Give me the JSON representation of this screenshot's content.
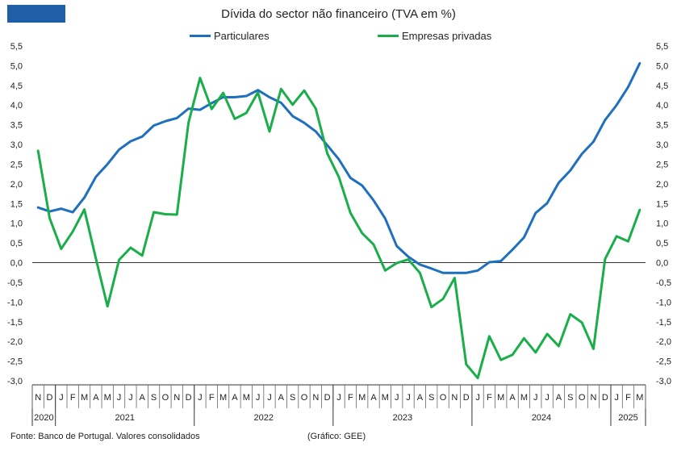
{
  "header": {
    "title": "Dívida do sector não financeiro (TVA em %)",
    "logo_color": "#1f5fa8"
  },
  "legend": {
    "series1": "Particulares",
    "series2": "Empresas privadas"
  },
  "footer": {
    "source": "Fonte: Banco de Portugal. Valores consolidados",
    "credit": "(Gráfico: GEE)"
  },
  "chart_data": {
    "type": "line",
    "title": "Dívida do sector não financeiro (TVA em %)",
    "ylim": [
      -3.0,
      5.5
    ],
    "yticks": [
      -3.0,
      -2.5,
      -2.0,
      -1.5,
      -1.0,
      -0.5,
      0.0,
      0.5,
      1.0,
      1.5,
      2.0,
      2.5,
      3.0,
      3.5,
      4.0,
      4.5,
      5.0,
      5.5
    ],
    "ytick_labels": [
      "-3,0",
      "-2,5",
      "-2,0",
      "-1,5",
      "-1,0",
      "-0,5",
      "0,0",
      "0,5",
      "1,0",
      "1,5",
      "2,0",
      "2,5",
      "3,0",
      "3,5",
      "4,0",
      "4,5",
      "5,0",
      "5,5"
    ],
    "categories": [
      "N",
      "D",
      "J",
      "F",
      "M",
      "A",
      "M",
      "J",
      "J",
      "A",
      "S",
      "O",
      "N",
      "D",
      "J",
      "F",
      "M",
      "A",
      "M",
      "J",
      "J",
      "A",
      "S",
      "O",
      "N",
      "D",
      "J",
      "F",
      "M",
      "A",
      "M",
      "J",
      "J",
      "A",
      "S",
      "O",
      "N",
      "D",
      "J",
      "F",
      "M",
      "A",
      "M",
      "J",
      "J",
      "A",
      "S",
      "O",
      "N",
      "D",
      "J",
      "F",
      "M"
    ],
    "years": [
      {
        "label": "2020",
        "start": 0,
        "end": 1
      },
      {
        "label": "2021",
        "start": 2,
        "end": 13
      },
      {
        "label": "2022",
        "start": 14,
        "end": 25
      },
      {
        "label": "2023",
        "start": 26,
        "end": 37
      },
      {
        "label": "2024",
        "start": 38,
        "end": 49
      },
      {
        "label": "2025",
        "start": 50,
        "end": 52
      }
    ],
    "series": [
      {
        "name": "Particulares",
        "color": "#1f6fbf",
        "values": [
          1.4,
          1.3,
          1.37,
          1.28,
          1.65,
          2.18,
          2.5,
          2.87,
          3.08,
          3.2,
          3.48,
          3.59,
          3.67,
          3.91,
          3.88,
          4.05,
          4.2,
          4.2,
          4.23,
          4.38,
          4.2,
          4.06,
          3.72,
          3.55,
          3.33,
          2.98,
          2.62,
          2.15,
          1.96,
          1.58,
          1.12,
          0.42,
          0.15,
          -0.05,
          -0.15,
          -0.26,
          -0.26,
          -0.26,
          -0.2,
          0.01,
          0.04,
          0.33,
          0.64,
          1.26,
          1.51,
          2.03,
          2.34,
          2.76,
          3.07,
          3.62,
          4.0,
          4.46,
          5.06
        ]
      },
      {
        "name": "Empresas privadas",
        "color": "#1aae4a",
        "values": [
          2.84,
          1.13,
          0.35,
          0.79,
          1.35,
          0.1,
          -1.11,
          0.07,
          0.38,
          0.18,
          1.28,
          1.23,
          1.22,
          3.55,
          4.69,
          3.9,
          4.31,
          3.65,
          3.8,
          4.32,
          3.33,
          4.41,
          4.01,
          4.37,
          3.91,
          2.77,
          2.17,
          1.26,
          0.75,
          0.46,
          -0.2,
          -0.01,
          0.08,
          -0.26,
          -1.13,
          -0.92,
          -0.39,
          -2.58,
          -2.93,
          -1.87,
          -2.47,
          -2.34,
          -1.92,
          -2.28,
          -1.81,
          -2.12,
          -1.31,
          -1.52,
          -2.19,
          0.09,
          0.67,
          0.54,
          1.34
        ]
      }
    ]
  }
}
